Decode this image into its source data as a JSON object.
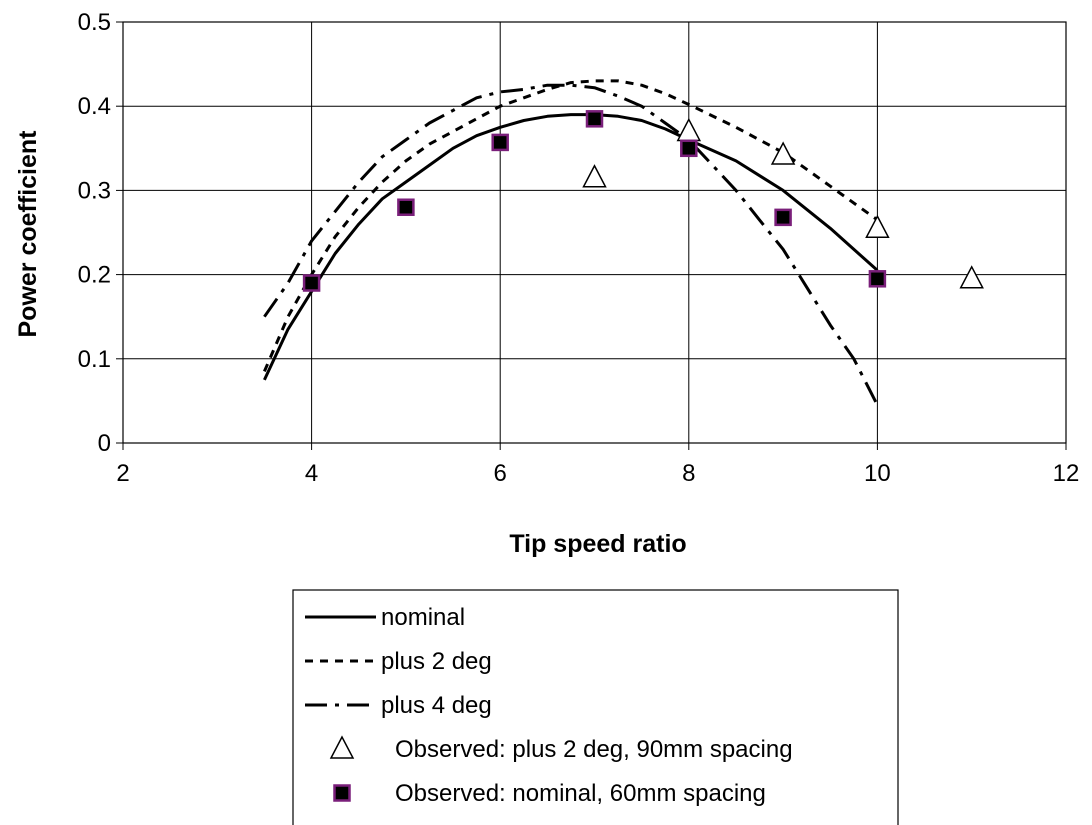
{
  "chart_data": {
    "type": "line",
    "xlabel": "Tip speed ratio",
    "ylabel": "Power coefficient",
    "xlim": [
      2,
      12
    ],
    "ylim": [
      0,
      0.5
    ],
    "x_ticks": [
      2,
      4,
      6,
      8,
      10,
      12
    ],
    "y_ticks": [
      0,
      0.1,
      0.2,
      0.3,
      0.4,
      0.5
    ],
    "x_tick_labels": [
      "2",
      "4",
      "6",
      "8",
      "10",
      "12"
    ],
    "y_tick_labels": [
      "0",
      "0.1",
      "0.2",
      "0.3",
      "0.4",
      "0.5"
    ],
    "grid": true,
    "legend_position": "bottom",
    "series": [
      {
        "name": "nominal",
        "kind": "line",
        "style": "solid",
        "color": "#000000",
        "x": [
          3.5,
          3.75,
          4.0,
          4.25,
          4.5,
          4.75,
          5.0,
          5.25,
          5.5,
          5.75,
          6.0,
          6.25,
          6.5,
          6.75,
          7.0,
          7.25,
          7.5,
          7.75,
          8.0,
          8.5,
          9.0,
          9.5,
          10.0
        ],
        "y": [
          0.075,
          0.135,
          0.18,
          0.225,
          0.26,
          0.29,
          0.31,
          0.33,
          0.35,
          0.365,
          0.375,
          0.383,
          0.388,
          0.39,
          0.39,
          0.388,
          0.383,
          0.373,
          0.36,
          0.335,
          0.3,
          0.255,
          0.205
        ]
      },
      {
        "name": "plus 2 deg",
        "kind": "line",
        "style": "dotted",
        "color": "#000000",
        "x": [
          3.5,
          3.75,
          4.0,
          4.25,
          4.5,
          4.75,
          5.0,
          5.25,
          5.5,
          5.75,
          6.0,
          6.25,
          6.5,
          6.75,
          7.0,
          7.25,
          7.5,
          7.75,
          8.0,
          8.5,
          9.0,
          9.5,
          10.0
        ],
        "y": [
          0.085,
          0.15,
          0.2,
          0.245,
          0.28,
          0.31,
          0.335,
          0.355,
          0.37,
          0.385,
          0.4,
          0.41,
          0.42,
          0.428,
          0.43,
          0.43,
          0.425,
          0.415,
          0.402,
          0.375,
          0.345,
          0.305,
          0.265
        ]
      },
      {
        "name": "plus 4 deg",
        "kind": "line",
        "style": "dashdot",
        "color": "#000000",
        "x": [
          3.5,
          3.75,
          4.0,
          4.25,
          4.5,
          4.75,
          5.0,
          5.25,
          5.5,
          5.75,
          6.0,
          6.25,
          6.5,
          6.75,
          7.0,
          7.25,
          7.5,
          7.75,
          8.0,
          8.25,
          8.5,
          8.75,
          9.0,
          9.25,
          9.5,
          9.75,
          10.0
        ],
        "y": [
          0.15,
          0.19,
          0.24,
          0.275,
          0.31,
          0.34,
          0.36,
          0.38,
          0.395,
          0.41,
          0.417,
          0.42,
          0.425,
          0.425,
          0.422,
          0.412,
          0.4,
          0.38,
          0.36,
          0.33,
          0.3,
          0.265,
          0.23,
          0.185,
          0.14,
          0.1,
          0.045
        ]
      },
      {
        "name": "Observed: plus 2 deg, 90mm spacing",
        "kind": "scatter",
        "marker": "triangle",
        "color": "#000000",
        "x": [
          7,
          8,
          9,
          10,
          11
        ],
        "y": [
          0.315,
          0.37,
          0.342,
          0.255,
          0.195
        ]
      },
      {
        "name": "Observed: nominal, 60mm spacing",
        "kind": "scatter",
        "marker": "square",
        "color": "#000000",
        "edge_color": "#7a1f7a",
        "x": [
          4,
          5,
          6,
          7,
          8,
          9,
          10
        ],
        "y": [
          0.19,
          0.28,
          0.357,
          0.385,
          0.35,
          0.268,
          0.195
        ]
      }
    ]
  }
}
